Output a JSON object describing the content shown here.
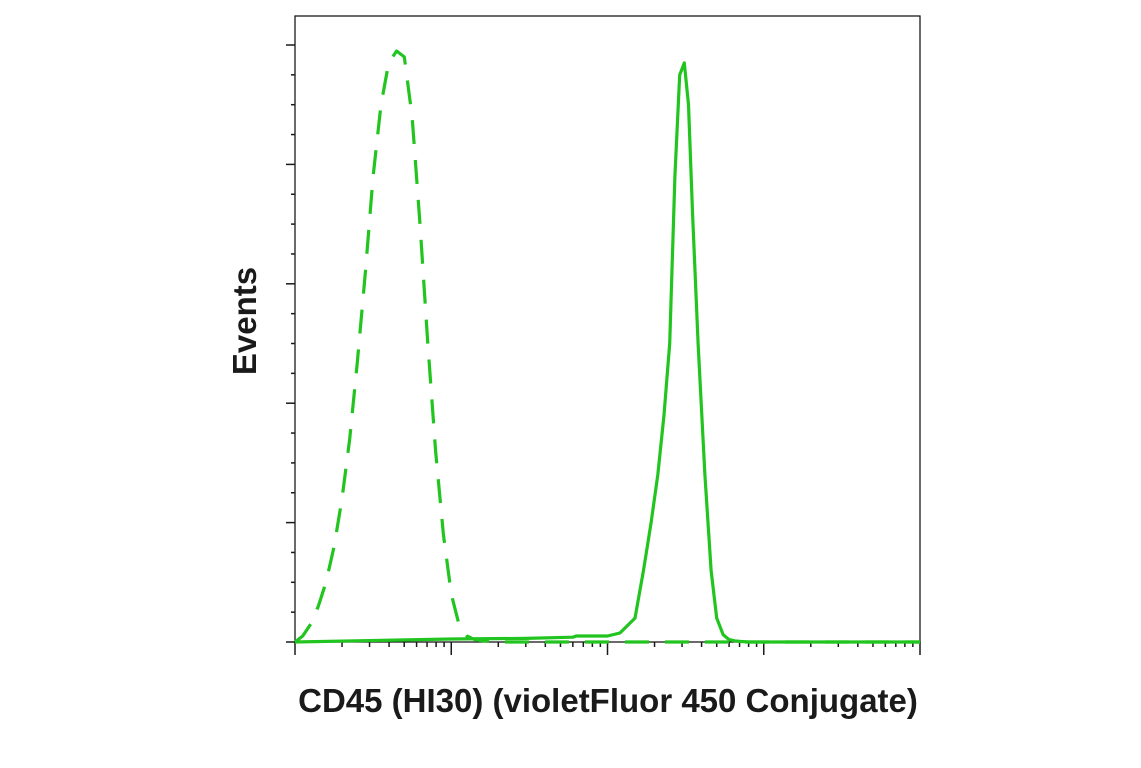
{
  "chart_data": {
    "type": "line",
    "title": "",
    "xlabel": "CD45 (HI30) (violetFluor 450 Conjugate)",
    "ylabel": "Events",
    "x_scale": "log",
    "x_range": [
      1,
      10000
    ],
    "y_range": [
      0,
      1
    ],
    "grid": false,
    "legend": "none",
    "color": "#22c51f",
    "series": [
      {
        "line_style": "dashed",
        "x": [
          1,
          1.12,
          1.26,
          1.41,
          1.58,
          1.78,
          2.0,
          2.24,
          2.51,
          2.82,
          3.16,
          3.55,
          3.98,
          4.47,
          5.01,
          5.62,
          6.31,
          7.08,
          7.94,
          8.91,
          10.0,
          11.2,
          12.6,
          14.1,
          15.8,
          17.8,
          20.0,
          25.1,
          31.6,
          50,
          100,
          1000,
          10000
        ],
        "y": [
          0.0,
          0.01,
          0.03,
          0.06,
          0.1,
          0.16,
          0.24,
          0.34,
          0.47,
          0.62,
          0.78,
          0.9,
          0.97,
          0.99,
          0.98,
          0.88,
          0.7,
          0.5,
          0.32,
          0.18,
          0.08,
          0.03,
          0.01,
          0.004,
          0.002,
          0.001,
          0.0,
          0.0,
          0.0,
          0.0,
          0.0,
          0.0,
          0.0
        ]
      },
      {
        "line_style": "solid",
        "x": [
          1,
          10,
          30,
          60,
          63,
          100,
          120,
          150,
          170,
          190,
          210,
          230,
          250,
          270,
          290,
          310,
          330,
          350,
          380,
          420,
          460,
          500,
          550,
          600,
          650,
          700,
          800,
          1000,
          3000,
          10000
        ],
        "y": [
          0.0,
          0.005,
          0.006,
          0.008,
          0.01,
          0.01,
          0.015,
          0.04,
          0.12,
          0.2,
          0.28,
          0.38,
          0.5,
          0.78,
          0.95,
          0.97,
          0.9,
          0.72,
          0.5,
          0.28,
          0.12,
          0.04,
          0.012,
          0.004,
          0.002,
          0.001,
          0.0,
          0.0,
          0.0,
          0.0
        ]
      }
    ]
  }
}
